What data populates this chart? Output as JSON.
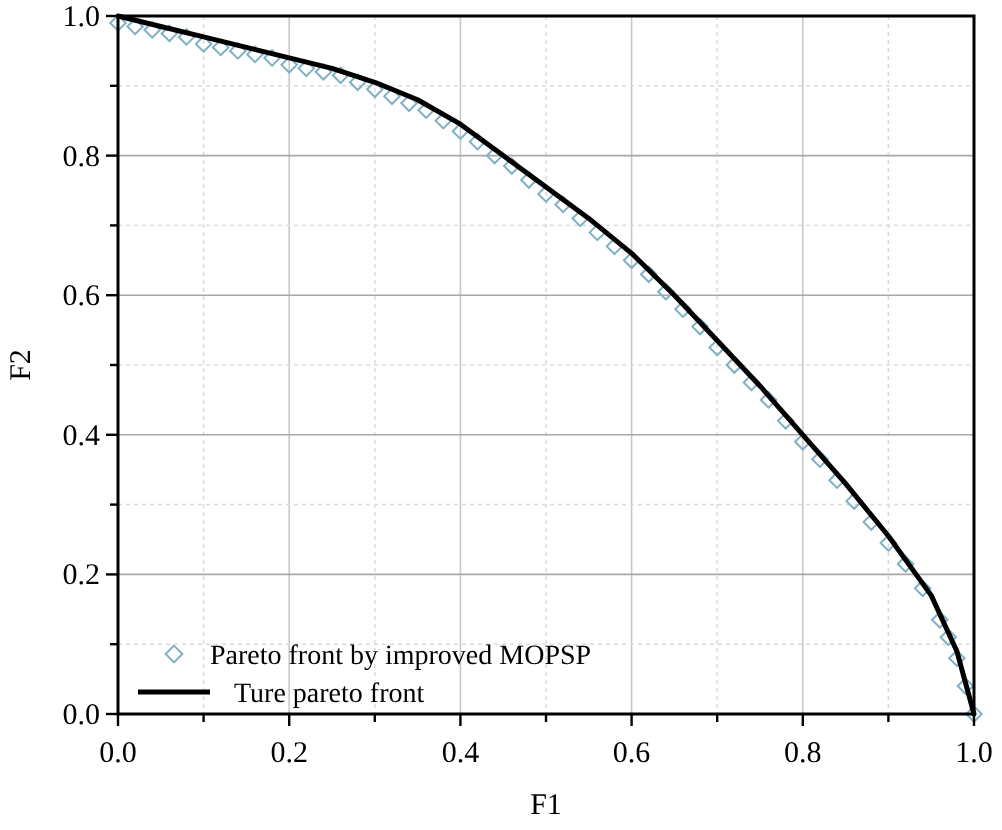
{
  "chart_data": {
    "type": "scatter",
    "xlabel": "F1",
    "ylabel": "F2",
    "xlim": [
      0,
      1
    ],
    "ylim": [
      0,
      1
    ],
    "xticks": [
      {
        "value": 0,
        "label": "0.0"
      },
      {
        "value": 0.1,
        "label": null
      },
      0.2,
      {
        "value": 0.3,
        "label": null
      },
      0.4,
      {
        "value": 0.5,
        "label": null
      },
      0.6,
      {
        "value": 0.7,
        "label": null
      },
      0.8,
      {
        "value": 0.9,
        "label": null
      },
      {
        "value": 1,
        "label": "1.0"
      }
    ],
    "yticks": [
      {
        "value": 0,
        "label": "0.0"
      },
      {
        "value": 0.1,
        "label": null
      },
      0.2,
      {
        "value": 0.3,
        "label": null
      },
      0.4,
      {
        "value": 0.5,
        "label": null
      },
      0.6,
      {
        "value": 0.7,
        "label": null
      },
      0.8,
      {
        "value": 0.9,
        "label": null
      },
      {
        "value": 1,
        "label": "1.0"
      }
    ],
    "grid": true,
    "legend": "bottom left",
    "series": [
      {
        "name": "Pareto front by improved MOPSP",
        "marker": "diamond",
        "color": "#7fb0c4",
        "x": [
          0,
          0.02,
          0.04,
          0.06,
          0.08,
          0.1,
          0.12,
          0.14,
          0.16,
          0.18,
          0.2,
          0.22,
          0.24,
          0.26,
          0.28,
          0.3,
          0.32,
          0.34,
          0.36,
          0.38,
          0.4,
          0.42,
          0.44,
          0.46,
          0.48,
          0.5,
          0.52,
          0.54,
          0.56,
          0.58,
          0.6,
          0.62,
          0.64,
          0.66,
          0.68,
          0.7,
          0.72,
          0.74,
          0.76,
          0.78,
          0.8,
          0.82,
          0.84,
          0.86,
          0.88,
          0.9,
          0.92,
          0.94,
          0.96,
          0.97,
          0.98,
          0.99,
          1.0
        ],
        "values": [
          0.99,
          0.985,
          0.98,
          0.975,
          0.97,
          0.96,
          0.955,
          0.95,
          0.945,
          0.94,
          0.93,
          0.925,
          0.92,
          0.915,
          0.905,
          0.895,
          0.885,
          0.875,
          0.865,
          0.85,
          0.835,
          0.82,
          0.8,
          0.785,
          0.765,
          0.745,
          0.73,
          0.71,
          0.69,
          0.67,
          0.65,
          0.63,
          0.605,
          0.58,
          0.555,
          0.525,
          0.5,
          0.475,
          0.45,
          0.42,
          0.39,
          0.365,
          0.335,
          0.305,
          0.275,
          0.245,
          0.215,
          0.18,
          0.135,
          0.11,
          0.08,
          0.04,
          0
        ]
      },
      {
        "name": "Ture pareto front",
        "type": "line",
        "marker": "none",
        "line_style": "solid",
        "color": "#000000",
        "x": [
          0,
          0.05,
          0.1,
          0.15,
          0.2,
          0.25,
          0.3,
          0.35,
          0.4,
          0.45,
          0.5,
          0.55,
          0.6,
          0.65,
          0.7,
          0.75,
          0.8,
          0.85,
          0.9,
          0.95,
          0.98,
          1.0
        ],
        "values": [
          1,
          0.985,
          0.97,
          0.955,
          0.94,
          0.925,
          0.905,
          0.88,
          0.845,
          0.8,
          0.755,
          0.71,
          0.66,
          0.6,
          0.535,
          0.47,
          0.4,
          0.33,
          0.255,
          0.17,
          0.09,
          0
        ]
      }
    ]
  }
}
